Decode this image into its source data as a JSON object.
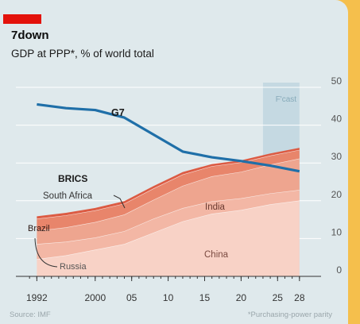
{
  "header": {
    "title": "7down",
    "subtitle": "GDP at PPP*, % of world total"
  },
  "footer": {
    "source": "Source: IMF",
    "footnote": "*Purchasing-power parity"
  },
  "colors": {
    "tag": "#e3120b",
    "panel": "#dfe9ec",
    "frame": "#f5bf4c",
    "g7": "#1f6fa8",
    "forecast": "#bcd3df",
    "china": "#f8d2c6",
    "russia": "#f3b7a5",
    "india": "#eea58f",
    "brazil": "#e8856b",
    "south_africa": "#dc5b43"
  },
  "chart_data": {
    "type": "area",
    "title": "7down",
    "subtitle": "GDP at PPP*, % of world total",
    "x": [
      1992,
      1996,
      2000,
      2004,
      2008,
      2012,
      2016,
      2020,
      2024,
      2028
    ],
    "xlim": [
      1990,
      2029
    ],
    "ylim": [
      0,
      50
    ],
    "x_ticks": [
      1992,
      2000,
      2005,
      2010,
      2015,
      2020,
      2025,
      2028
    ],
    "x_tick_labels": [
      "1992",
      "2000",
      "05",
      "10",
      "15",
      "20",
      "25",
      "28"
    ],
    "y_ticks": [
      0,
      10,
      20,
      30,
      40,
      50
    ],
    "forecast": {
      "label": "F'cast",
      "from": 2023,
      "to": 2028
    },
    "stacked_series": [
      {
        "name": "China",
        "label": "China",
        "values": [
          4.5,
          5.5,
          7.0,
          8.5,
          11.5,
          14.5,
          16.5,
          17.5,
          19.0,
          20.0
        ]
      },
      {
        "name": "Russia",
        "label": "Russia",
        "values": [
          4.0,
          3.6,
          3.2,
          3.4,
          3.7,
          3.5,
          3.3,
          3.1,
          2.9,
          2.8
        ]
      },
      {
        "name": "India",
        "label": "India",
        "values": [
          3.5,
          3.8,
          4.1,
          4.4,
          5.0,
          5.9,
          6.6,
          7.0,
          7.6,
          8.3
        ]
      },
      {
        "name": "Brazil",
        "label": "Brazil",
        "values": [
          3.2,
          3.2,
          3.1,
          2.9,
          3.0,
          3.0,
          2.7,
          2.5,
          2.4,
          2.3
        ]
      },
      {
        "name": "South Africa",
        "label": "South Africa",
        "values": [
          0.7,
          0.7,
          0.7,
          0.7,
          0.7,
          0.7,
          0.6,
          0.6,
          0.6,
          0.6
        ]
      }
    ],
    "group_label": "BRICS",
    "series": [
      {
        "name": "G7",
        "label": "G7",
        "values": [
          45.5,
          44.5,
          44.0,
          42.0,
          37.5,
          33.0,
          31.5,
          30.5,
          29.3,
          27.8
        ]
      }
    ]
  }
}
